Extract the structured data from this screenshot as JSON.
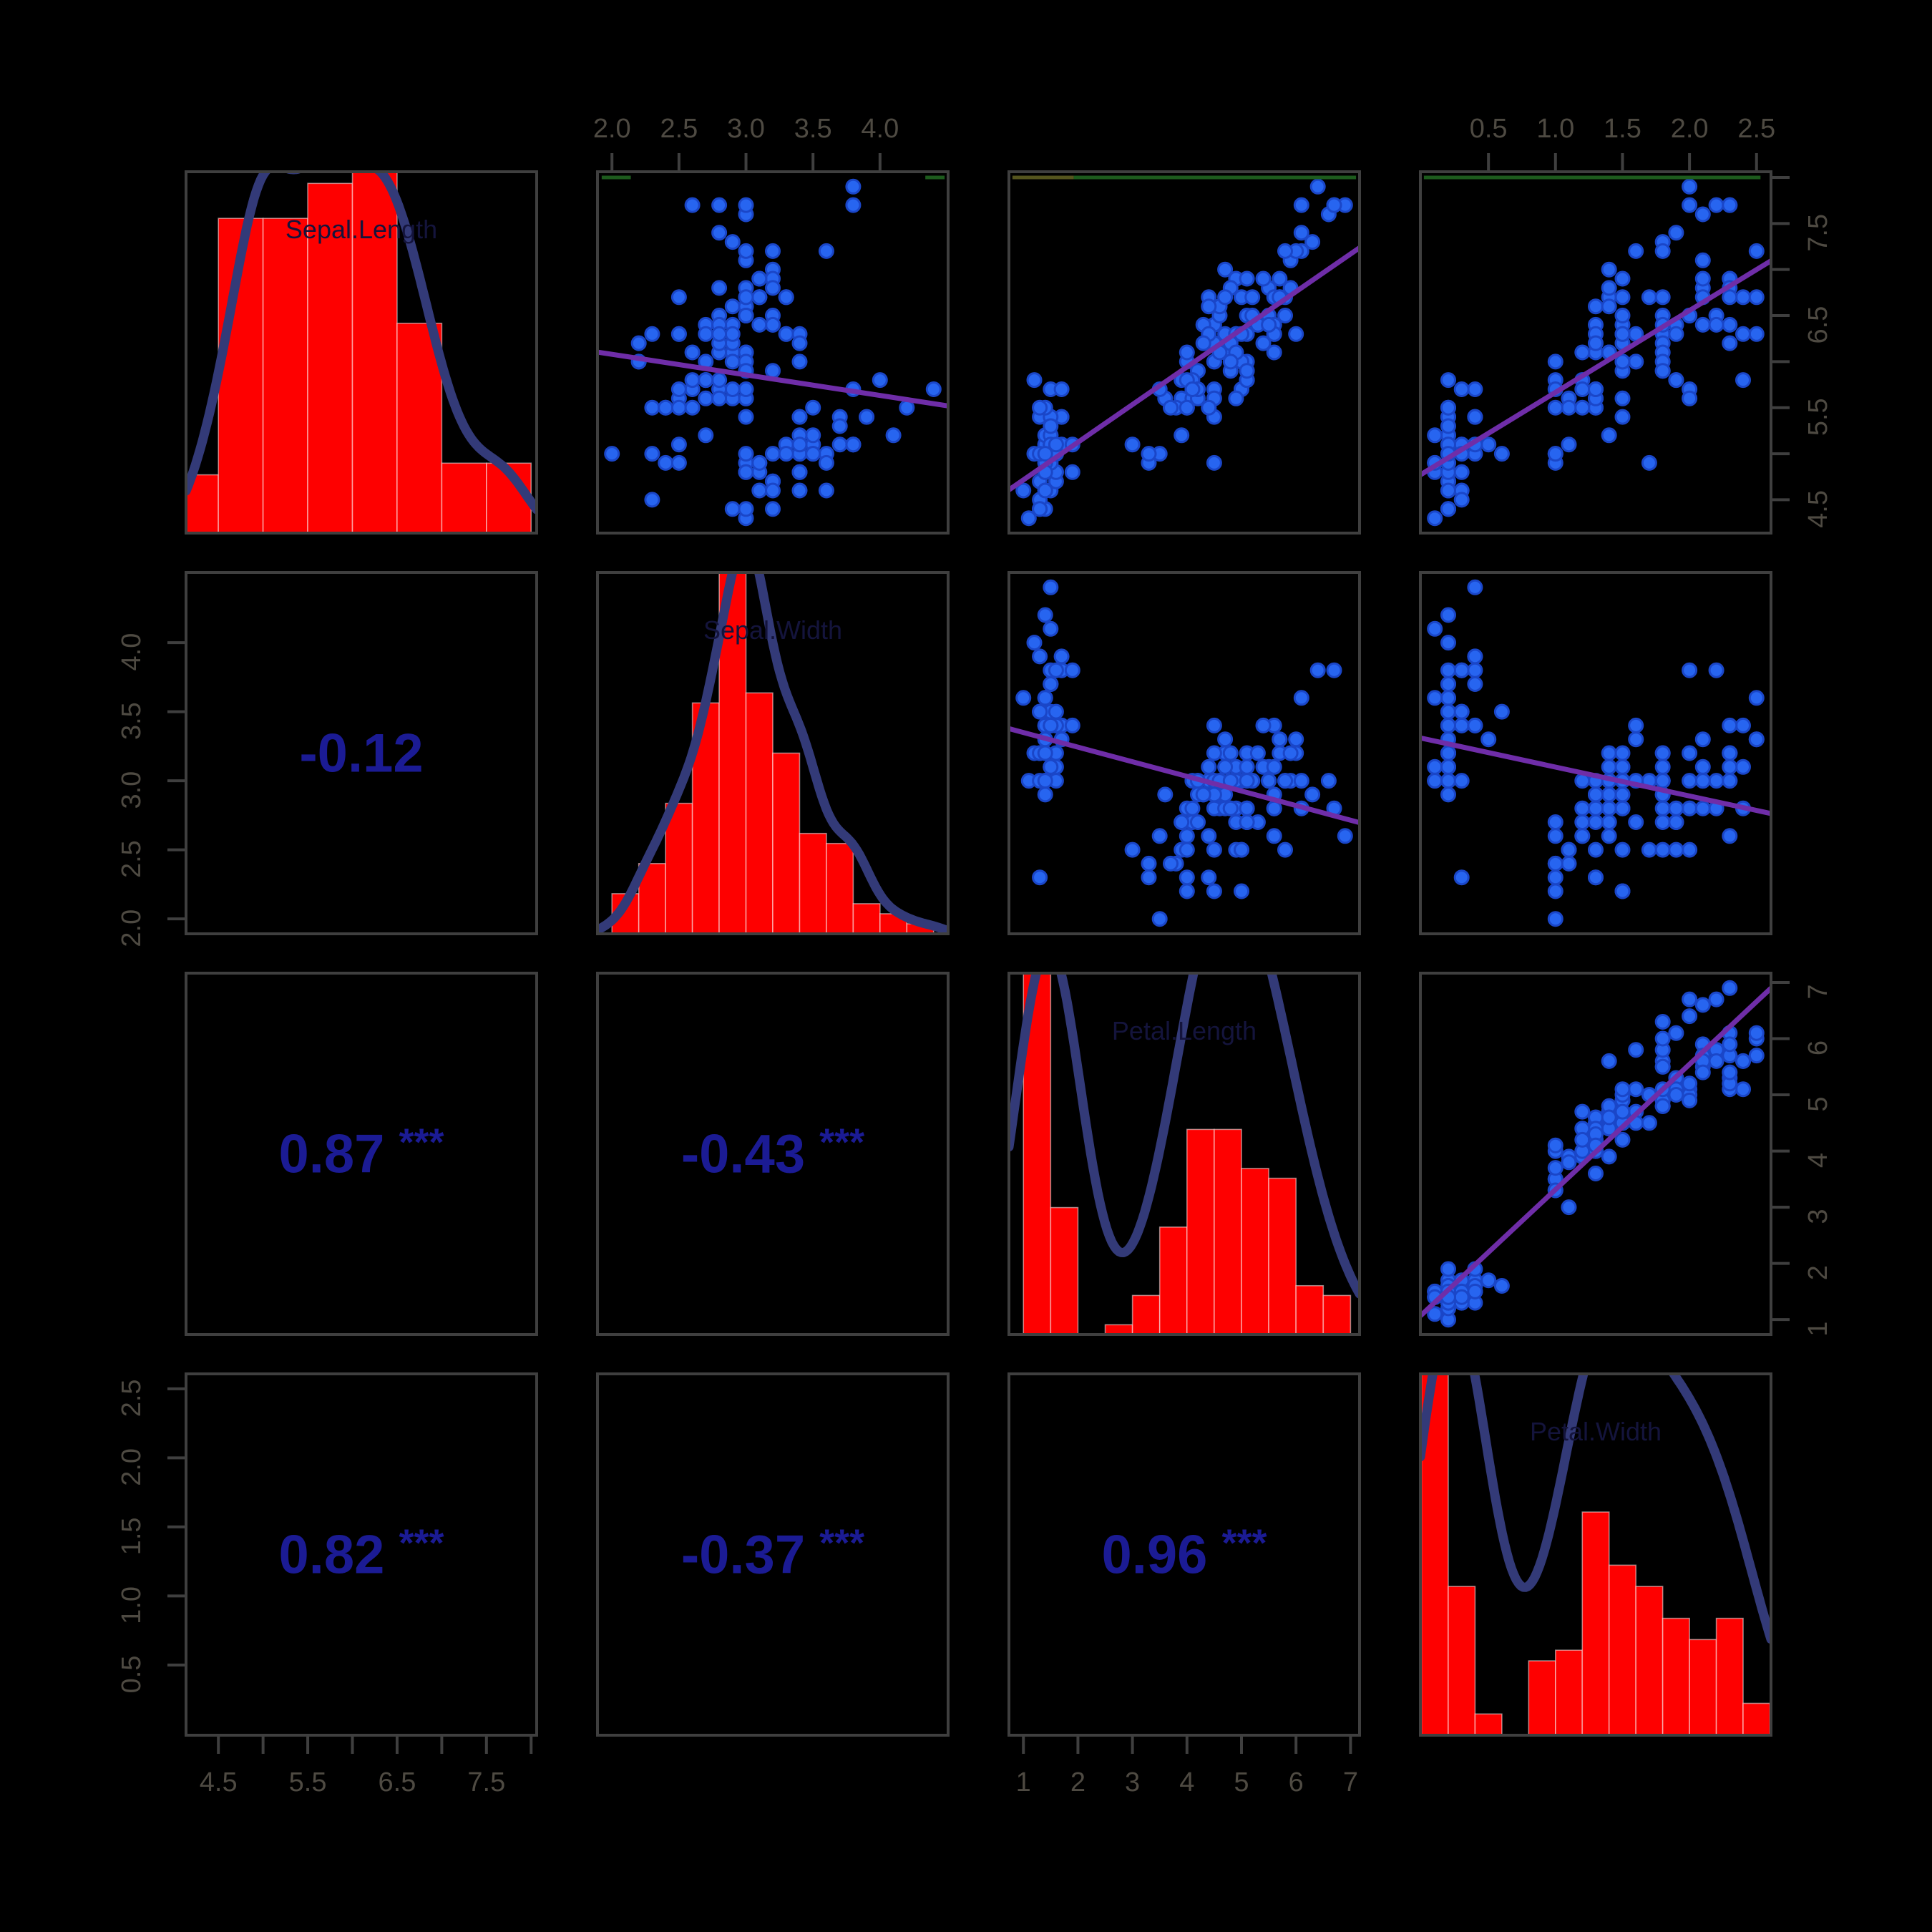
{
  "colors": {
    "background": "#000000",
    "hist_fill": "#FE0000",
    "hist_bar_divider": "rgba(255,255,255,0.5)",
    "density_line": "#333A78",
    "scatter_dot": "#2765F0",
    "scatter_dot_edge": "#1A46C8",
    "fit_line": "#6F2DA8",
    "corr_text": "#1B1B94",
    "box_border": "#3F3F3F",
    "tick_label": "#4E4A42",
    "diag_label": "#14143C",
    "artifact_green": "#1D5B1D",
    "artifact_olive": "#55551E"
  },
  "chart_data": {
    "type": "scatterplot-matrix",
    "title": "",
    "diagonal_labels": [
      "Sepal.Length",
      "Sepal.Width",
      "Petal.Length",
      "Petal.Width"
    ],
    "variables": [
      {
        "name": "Sepal.Length",
        "data_min": 4.3,
        "data_max": 7.9,
        "ticks": [
          4.5,
          5.0,
          5.5,
          6.0,
          6.5,
          7.0,
          7.5,
          8.0
        ],
        "tick_labels": [
          "4.5",
          "",
          "5.5",
          "",
          "6.5",
          "",
          "7.5",
          ""
        ],
        "hist": {
          "start": 4.0,
          "bin_width": 0.5,
          "counts": [
            5,
            27,
            27,
            30,
            31,
            18,
            6,
            6
          ]
        }
      },
      {
        "name": "Sepal.Width",
        "data_min": 2.0,
        "data_max": 4.4,
        "ticks": [
          2.0,
          2.5,
          3.0,
          3.5,
          4.0
        ],
        "tick_labels": [
          "2.0",
          "2.5",
          "3.0",
          "3.5",
          "4.0"
        ],
        "hist": {
          "start": 2.0,
          "bin_width": 0.2,
          "counts": [
            4,
            7,
            13,
            23,
            36,
            24,
            18,
            10,
            9,
            3,
            2,
            1
          ]
        }
      },
      {
        "name": "Petal.Length",
        "data_min": 1.0,
        "data_max": 6.9,
        "ticks": [
          1,
          2,
          3,
          4,
          5,
          6,
          7
        ],
        "tick_labels": [
          "1",
          "2",
          "3",
          "4",
          "5",
          "6",
          "7"
        ],
        "hist": {
          "start": 1.0,
          "bin_width": 0.5,
          "counts": [
            37,
            13,
            0,
            1,
            4,
            11,
            21,
            21,
            17,
            16,
            5,
            4
          ]
        }
      },
      {
        "name": "Petal.Width",
        "data_min": 0.1,
        "data_max": 2.5,
        "ticks": [
          0.5,
          1.0,
          1.5,
          2.0,
          2.5
        ],
        "tick_labels": [
          "0.5",
          "1.0",
          "1.5",
          "2.0",
          "2.5"
        ],
        "hist": {
          "start": 0.0,
          "bin_width": 0.2,
          "counts": [
            34,
            14,
            2,
            0,
            7,
            8,
            21,
            16,
            14,
            11,
            9,
            11,
            3
          ]
        }
      }
    ],
    "axis_sides": {
      "top_columns": [
        1,
        3
      ],
      "bottom_columns": [
        0,
        2
      ],
      "left_rows": [
        1,
        3
      ],
      "right_rows": [
        0,
        2
      ]
    },
    "correlations": [
      {
        "row": 1,
        "col": 0,
        "value": "-0.12",
        "stars": ""
      },
      {
        "row": 2,
        "col": 0,
        "value": "0.87",
        "stars": "***"
      },
      {
        "row": 2,
        "col": 1,
        "value": "-0.43",
        "stars": "***"
      },
      {
        "row": 3,
        "col": 0,
        "value": "0.82",
        "stars": "***"
      },
      {
        "row": 3,
        "col": 1,
        "value": "-0.37",
        "stars": "***"
      },
      {
        "row": 3,
        "col": 2,
        "value": "0.96",
        "stars": "***"
      }
    ],
    "top_edge_artifacts": [
      {
        "row": 0,
        "col": 1,
        "x1": 0.012,
        "x2": 0.095,
        "color_key": "artifact_green"
      },
      {
        "row": 0,
        "col": 1,
        "x1": 0.935,
        "x2": 0.99,
        "color_key": "artifact_green"
      },
      {
        "row": 0,
        "col": 2,
        "x1": 0.01,
        "x2": 0.185,
        "color_key": "artifact_olive"
      },
      {
        "row": 0,
        "col": 2,
        "x1": 0.185,
        "x2": 0.99,
        "color_key": "artifact_green"
      },
      {
        "row": 0,
        "col": 3,
        "x1": 0.01,
        "x2": 0.97,
        "color_key": "artifact_green"
      }
    ],
    "points": [
      [
        5.1,
        3.5,
        1.4,
        0.2
      ],
      [
        4.9,
        3.0,
        1.4,
        0.2
      ],
      [
        4.7,
        3.2,
        1.3,
        0.2
      ],
      [
        4.6,
        3.1,
        1.5,
        0.2
      ],
      [
        5.0,
        3.6,
        1.4,
        0.2
      ],
      [
        5.4,
        3.9,
        1.7,
        0.4
      ],
      [
        4.6,
        3.4,
        1.4,
        0.3
      ],
      [
        5.0,
        3.4,
        1.5,
        0.2
      ],
      [
        4.4,
        2.9,
        1.4,
        0.2
      ],
      [
        4.9,
        3.1,
        1.5,
        0.1
      ],
      [
        5.4,
        3.7,
        1.5,
        0.2
      ],
      [
        4.8,
        3.4,
        1.6,
        0.2
      ],
      [
        4.8,
        3.0,
        1.4,
        0.1
      ],
      [
        4.3,
        3.0,
        1.1,
        0.1
      ],
      [
        5.8,
        4.0,
        1.2,
        0.2
      ],
      [
        5.7,
        4.4,
        1.5,
        0.4
      ],
      [
        5.4,
        3.9,
        1.3,
        0.4
      ],
      [
        5.1,
        3.5,
        1.4,
        0.3
      ],
      [
        5.7,
        3.8,
        1.7,
        0.3
      ],
      [
        5.1,
        3.8,
        1.5,
        0.3
      ],
      [
        5.4,
        3.4,
        1.7,
        0.2
      ],
      [
        5.1,
        3.7,
        1.5,
        0.4
      ],
      [
        4.6,
        3.6,
        1.0,
        0.2
      ],
      [
        5.1,
        3.3,
        1.7,
        0.5
      ],
      [
        4.8,
        3.4,
        1.9,
        0.2
      ],
      [
        5.0,
        3.0,
        1.6,
        0.2
      ],
      [
        5.0,
        3.4,
        1.6,
        0.4
      ],
      [
        5.2,
        3.5,
        1.5,
        0.2
      ],
      [
        5.2,
        3.4,
        1.4,
        0.2
      ],
      [
        4.7,
        3.2,
        1.6,
        0.2
      ],
      [
        4.8,
        3.1,
        1.6,
        0.2
      ],
      [
        5.4,
        3.4,
        1.5,
        0.4
      ],
      [
        5.2,
        4.1,
        1.5,
        0.1
      ],
      [
        5.5,
        4.2,
        1.4,
        0.2
      ],
      [
        4.9,
        3.1,
        1.5,
        0.2
      ],
      [
        5.0,
        3.2,
        1.2,
        0.2
      ],
      [
        5.5,
        3.5,
        1.3,
        0.2
      ],
      [
        4.9,
        3.6,
        1.4,
        0.1
      ],
      [
        4.4,
        3.0,
        1.3,
        0.2
      ],
      [
        5.1,
        3.4,
        1.5,
        0.2
      ],
      [
        5.0,
        3.5,
        1.3,
        0.3
      ],
      [
        4.5,
        2.3,
        1.3,
        0.3
      ],
      [
        4.4,
        3.2,
        1.3,
        0.2
      ],
      [
        5.0,
        3.5,
        1.6,
        0.6
      ],
      [
        5.1,
        3.8,
        1.9,
        0.4
      ],
      [
        4.8,
        3.0,
        1.4,
        0.3
      ],
      [
        5.1,
        3.8,
        1.6,
        0.2
      ],
      [
        4.6,
        3.2,
        1.4,
        0.2
      ],
      [
        5.3,
        3.7,
        1.5,
        0.2
      ],
      [
        5.0,
        3.3,
        1.4,
        0.2
      ],
      [
        7.0,
        3.2,
        4.7,
        1.4
      ],
      [
        6.4,
        3.2,
        4.5,
        1.5
      ],
      [
        6.9,
        3.1,
        4.9,
        1.5
      ],
      [
        5.5,
        2.3,
        4.0,
        1.3
      ],
      [
        6.5,
        2.8,
        4.6,
        1.5
      ],
      [
        5.7,
        2.8,
        4.5,
        1.3
      ],
      [
        6.3,
        3.3,
        4.7,
        1.6
      ],
      [
        4.9,
        2.4,
        3.3,
        1.0
      ],
      [
        6.6,
        2.9,
        4.6,
        1.3
      ],
      [
        5.2,
        2.7,
        3.9,
        1.4
      ],
      [
        5.0,
        2.0,
        3.5,
        1.0
      ],
      [
        5.9,
        3.0,
        4.2,
        1.5
      ],
      [
        6.0,
        2.2,
        4.0,
        1.0
      ],
      [
        6.1,
        2.9,
        4.7,
        1.4
      ],
      [
        5.6,
        2.9,
        3.6,
        1.3
      ],
      [
        6.7,
        3.1,
        4.4,
        1.4
      ],
      [
        5.6,
        3.0,
        4.5,
        1.5
      ],
      [
        5.8,
        2.7,
        4.1,
        1.0
      ],
      [
        6.2,
        2.2,
        4.5,
        1.5
      ],
      [
        5.6,
        2.5,
        3.9,
        1.1
      ],
      [
        5.9,
        3.2,
        4.8,
        1.8
      ],
      [
        6.1,
        2.8,
        4.0,
        1.3
      ],
      [
        6.3,
        2.5,
        4.9,
        1.5
      ],
      [
        6.1,
        2.8,
        4.7,
        1.2
      ],
      [
        6.4,
        2.9,
        4.3,
        1.3
      ],
      [
        6.6,
        3.0,
        4.4,
        1.4
      ],
      [
        6.8,
        2.8,
        4.8,
        1.4
      ],
      [
        6.7,
        3.0,
        5.0,
        1.7
      ],
      [
        6.0,
        2.9,
        4.5,
        1.5
      ],
      [
        5.7,
        2.6,
        3.5,
        1.0
      ],
      [
        5.5,
        2.4,
        3.8,
        1.1
      ],
      [
        5.5,
        2.4,
        3.7,
        1.0
      ],
      [
        5.8,
        2.7,
        3.9,
        1.2
      ],
      [
        6.0,
        2.7,
        5.1,
        1.6
      ],
      [
        5.4,
        3.0,
        4.5,
        1.5
      ],
      [
        6.0,
        3.4,
        4.5,
        1.6
      ],
      [
        6.7,
        3.1,
        4.7,
        1.5
      ],
      [
        6.3,
        2.3,
        4.4,
        1.3
      ],
      [
        5.6,
        3.0,
        4.1,
        1.3
      ],
      [
        5.5,
        2.5,
        4.0,
        1.3
      ],
      [
        5.5,
        2.6,
        4.4,
        1.2
      ],
      [
        6.1,
        3.0,
        4.6,
        1.4
      ],
      [
        5.8,
        2.6,
        4.0,
        1.2
      ],
      [
        5.0,
        2.3,
        3.3,
        1.0
      ],
      [
        5.6,
        2.7,
        4.2,
        1.3
      ],
      [
        5.7,
        3.0,
        4.2,
        1.2
      ],
      [
        5.7,
        2.9,
        4.2,
        1.3
      ],
      [
        6.2,
        2.9,
        4.3,
        1.3
      ],
      [
        5.1,
        2.5,
        3.0,
        1.1
      ],
      [
        5.7,
        2.8,
        4.1,
        1.3
      ],
      [
        6.3,
        3.3,
        6.0,
        2.5
      ],
      [
        5.8,
        2.7,
        5.1,
        1.9
      ],
      [
        7.1,
        3.0,
        5.9,
        2.1
      ],
      [
        6.3,
        2.9,
        5.6,
        1.8
      ],
      [
        6.5,
        3.0,
        5.8,
        2.2
      ],
      [
        7.6,
        3.0,
        6.6,
        2.1
      ],
      [
        4.9,
        2.5,
        4.5,
        1.7
      ],
      [
        7.3,
        2.9,
        6.3,
        1.8
      ],
      [
        6.7,
        2.5,
        5.8,
        1.8
      ],
      [
        7.2,
        3.6,
        6.1,
        2.5
      ],
      [
        6.5,
        3.2,
        5.1,
        2.0
      ],
      [
        6.4,
        2.7,
        5.3,
        1.9
      ],
      [
        6.8,
        3.0,
        5.5,
        2.1
      ],
      [
        5.7,
        2.5,
        5.0,
        2.0
      ],
      [
        5.8,
        2.8,
        5.1,
        2.4
      ],
      [
        6.4,
        3.2,
        5.3,
        2.3
      ],
      [
        6.5,
        3.0,
        5.5,
        1.8
      ],
      [
        7.7,
        3.8,
        6.7,
        2.2
      ],
      [
        7.7,
        2.6,
        6.9,
        2.3
      ],
      [
        6.0,
        2.2,
        5.0,
        1.5
      ],
      [
        6.9,
        3.2,
        5.7,
        2.3
      ],
      [
        5.6,
        2.8,
        4.9,
        2.0
      ],
      [
        7.7,
        2.8,
        6.7,
        2.0
      ],
      [
        6.3,
        2.7,
        4.9,
        1.8
      ],
      [
        6.7,
        3.3,
        5.7,
        2.1
      ],
      [
        7.2,
        3.2,
        6.0,
        1.8
      ],
      [
        6.2,
        2.8,
        4.8,
        1.8
      ],
      [
        6.1,
        3.0,
        4.9,
        1.8
      ],
      [
        6.4,
        2.8,
        5.6,
        2.1
      ],
      [
        7.2,
        3.0,
        5.8,
        1.6
      ],
      [
        7.4,
        2.8,
        6.1,
        1.9
      ],
      [
        7.9,
        3.8,
        6.4,
        2.0
      ],
      [
        6.4,
        2.8,
        5.6,
        2.2
      ],
      [
        6.3,
        2.8,
        5.1,
        1.5
      ],
      [
        6.1,
        2.6,
        5.6,
        1.4
      ],
      [
        7.7,
        3.0,
        6.1,
        2.3
      ],
      [
        6.3,
        3.4,
        5.6,
        2.4
      ],
      [
        6.4,
        3.1,
        5.5,
        1.8
      ],
      [
        6.0,
        3.0,
        4.8,
        1.8
      ],
      [
        6.9,
        3.1,
        5.4,
        2.1
      ],
      [
        6.7,
        3.1,
        5.6,
        2.4
      ],
      [
        6.9,
        3.1,
        5.1,
        2.3
      ],
      [
        5.8,
        2.7,
        5.1,
        1.9
      ],
      [
        6.8,
        3.2,
        5.9,
        2.3
      ],
      [
        6.7,
        3.3,
        5.7,
        2.5
      ],
      [
        6.7,
        3.0,
        5.2,
        2.3
      ],
      [
        6.3,
        2.5,
        5.0,
        1.9
      ],
      [
        6.5,
        3.0,
        5.2,
        2.0
      ],
      [
        6.2,
        3.4,
        5.4,
        2.3
      ],
      [
        5.9,
        3.0,
        5.1,
        1.8
      ]
    ]
  }
}
